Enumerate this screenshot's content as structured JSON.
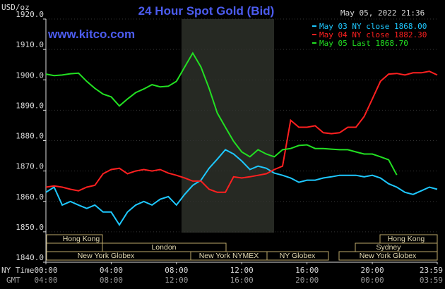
{
  "chart_data": {
    "type": "line",
    "title": "24 Hour Spot Gold (Bid)",
    "site": "www.kitco.com",
    "timestamp": "May 05, 2022 21:36",
    "y_label": "USD/oz",
    "x_label": "NY Time",
    "x2_label": "GMT",
    "xlim": [
      0,
      23.98
    ],
    "xticks": [
      {
        "value": 0,
        "label": "00:00"
      },
      {
        "value": 4,
        "label": "04:00"
      },
      {
        "value": 8,
        "label": "08:00"
      },
      {
        "value": 12,
        "label": "12:00"
      },
      {
        "value": 16,
        "label": "16:00"
      },
      {
        "value": 20,
        "label": "20:00"
      },
      {
        "value": 23.98,
        "label": "23:59"
      }
    ],
    "x2ticks": [
      {
        "value": 0,
        "label": "04:00"
      },
      {
        "value": 4,
        "label": "08:00"
      },
      {
        "value": 8,
        "label": "12:00"
      },
      {
        "value": 12,
        "label": "16:00"
      },
      {
        "value": 16,
        "label": "20:00"
      },
      {
        "value": 20,
        "label": "00:00"
      },
      {
        "value": 23.98,
        "label": "03:59"
      }
    ],
    "ylim": [
      1840,
      1920
    ],
    "yticks": [
      {
        "value": 1840,
        "label": "1840.0"
      },
      {
        "value": 1850,
        "label": "1850.0"
      },
      {
        "value": 1860,
        "label": "1860.0"
      },
      {
        "value": 1870,
        "label": "1870.0"
      },
      {
        "value": 1880,
        "label": "1880.0"
      },
      {
        "value": 1890,
        "label": "1890.0"
      },
      {
        "value": 1900,
        "label": "1900.0"
      },
      {
        "value": 1910,
        "label": "1910.0"
      },
      {
        "value": 1920,
        "label": "1920.0"
      }
    ],
    "grid": true,
    "sessions": [
      "Hong Kong",
      "Hong Kong",
      "London",
      "Sydney",
      "New York Globex",
      "New York NYMEX",
      "NY Globex",
      "New York Globex"
    ],
    "x": [
      0,
      0.5,
      1,
      1.5,
      2,
      2.5,
      3,
      3.5,
      4,
      4.5,
      5,
      5.5,
      6,
      6.5,
      7,
      7.5,
      8,
      8.5,
      9,
      9.5,
      10,
      10.5,
      11,
      11.5,
      12,
      12.5,
      13,
      13.5,
      14,
      14.5,
      15,
      15.5,
      16,
      16.5,
      17,
      17.5,
      18,
      18.5,
      19,
      19.5,
      20,
      20.5,
      21,
      21.5,
      22,
      22.5,
      23,
      23.5,
      23.98
    ],
    "series": [
      {
        "name": "May 03 NY close 1868.00",
        "color": "#1ec8ff",
        "values": [
          1863,
          1864.7,
          1858.8,
          1860,
          1858.8,
          1857.7,
          1858.8,
          1856.5,
          1856.5,
          1852.3,
          1856.5,
          1858.8,
          1860,
          1858.8,
          1860.7,
          1861.6,
          1858.8,
          1862.3,
          1865.3,
          1867,
          1870.9,
          1873.9,
          1877,
          1875.6,
          1873.3,
          1870.5,
          1871.6,
          1870.9,
          1869.3,
          1868.6,
          1867.7,
          1866.3,
          1867,
          1867,
          1867.7,
          1868.1,
          1868.6,
          1868.6,
          1868.6,
          1868.1,
          1868.6,
          1867.7,
          1865.8,
          1864.7,
          1863,
          1862.3,
          1863.5,
          1864.7,
          1864
        ]
      },
      {
        "name": "May 04 NY close 1882.30",
        "color": "#ff2020",
        "values": [
          1864.7,
          1865.1,
          1864.7,
          1864,
          1863.5,
          1864.7,
          1865.3,
          1869.1,
          1870.5,
          1870.9,
          1869.1,
          1870,
          1870.5,
          1870,
          1870.5,
          1869.3,
          1868.6,
          1867.7,
          1866.7,
          1866.7,
          1864,
          1863,
          1863,
          1868.1,
          1867.7,
          1868.1,
          1868.6,
          1869.1,
          1870.5,
          1871.6,
          1886.7,
          1884.4,
          1884.4,
          1884.9,
          1882.6,
          1882.3,
          1882.6,
          1884.4,
          1884.4,
          1887.9,
          1893.7,
          1899.5,
          1901.9,
          1902.1,
          1901.6,
          1902.3,
          1902.3,
          1902.8,
          1901.6
        ]
      },
      {
        "name": "May 05 Last 1868.70",
        "color": "#22e022",
        "values": [
          1901.9,
          1901.4,
          1901.6,
          1902,
          1902.2,
          1899.5,
          1897.2,
          1895.3,
          1894.4,
          1891.4,
          1893.7,
          1895.8,
          1897,
          1898.4,
          1897.7,
          1897.9,
          1899.5,
          1904.2,
          1908.8,
          1904.2,
          1897.2,
          1889.1,
          1884.4,
          1879.8,
          1876.3,
          1874.7,
          1877,
          1875.6,
          1874.7,
          1877,
          1877.4,
          1878.4,
          1878.6,
          1877.4,
          1877.4,
          1877.2,
          1877,
          1877,
          1876.3,
          1875.6,
          1875.6,
          1874.7,
          1873.7,
          1868.7,
          null,
          null,
          null,
          null,
          null
        ]
      }
    ]
  }
}
